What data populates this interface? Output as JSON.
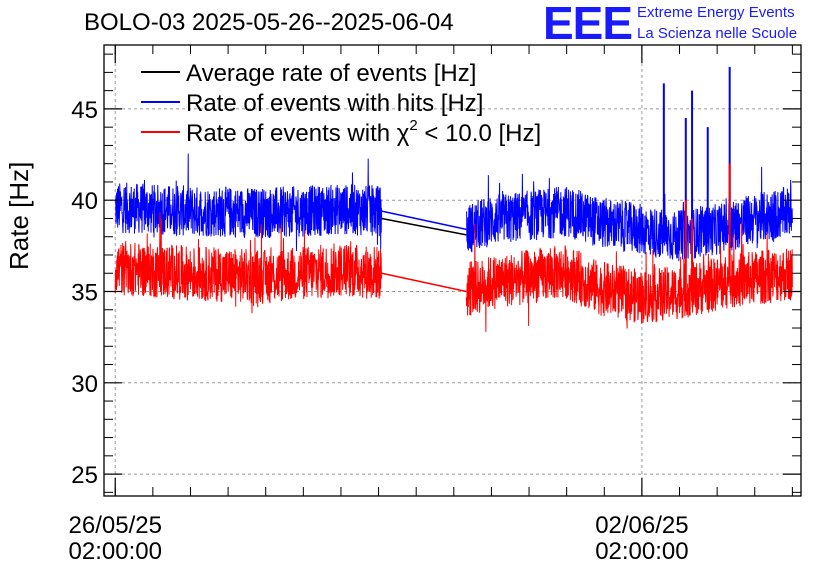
{
  "chart_data": {
    "type": "line",
    "title": "BOLO-03 2025-05-26--2025-06-04",
    "ylabel": "Rate [Hz]",
    "xlabel": "",
    "ylim": [
      23.8,
      48.5
    ],
    "yticks": [
      25,
      30,
      35,
      40,
      45
    ],
    "xrange": [
      "2025-05-25T22:25:00",
      "2025-06-04T04:45:00"
    ],
    "xticks": [
      {
        "date": "2025-05-26T02:00:00",
        "line1": "26/05/25",
        "line2": "02:00:00"
      },
      {
        "date": "2025-06-02T02:00:00",
        "line1": "02/06/25",
        "line2": "02:00:00"
      }
    ],
    "grid": true,
    "legend_position": "top-left",
    "legend": [
      {
        "label": "Average rate of events [Hz]",
        "color": "#000000"
      },
      {
        "label": "Rate of events with hits [Hz]",
        "color": "#0000ff"
      },
      {
        "label_prefix": "Rate of events with ",
        "label_symbol": "χ",
        "label_sup": "2",
        "label_suffix": " < 10.0 [Hz]",
        "color": "#ff0000"
      }
    ],
    "data_gap": [
      "2025-05-29T15:00:00",
      "2025-05-30T18:00:00"
    ],
    "series": [
      {
        "name": "Rate of events with hits [Hz]",
        "color": "#0000ff",
        "x": [
          "2025-05-26T02:00:00",
          "2025-05-27T02:00:00",
          "2025-05-28T02:00:00",
          "2025-05-29T02:00:00",
          "2025-05-29T15:00:00",
          "2025-05-30T18:00:00",
          "2025-05-31T02:00:00",
          "2025-06-01T02:00:00",
          "2025-06-01T12:00:00",
          "2025-06-02T02:00:00",
          "2025-06-02T12:00:00",
          "2025-06-03T02:00:00",
          "2025-06-03T12:00:00",
          "2025-06-04T02:00:00"
        ],
        "values": [
          39.6,
          39.4,
          39.3,
          39.5,
          39.4,
          38.4,
          38.9,
          39.4,
          38.8,
          38.4,
          38.0,
          38.4,
          38.9,
          39.4
        ],
        "spikes": [
          {
            "x": "2025-06-02T09:00:00",
            "y": 46.4
          },
          {
            "x": "2025-06-02T18:00:00",
            "y": 46.0
          },
          {
            "x": "2025-06-02T16:00:00",
            "y": 44.5
          },
          {
            "x": "2025-06-03T06:00:00",
            "y": 47.3
          },
          {
            "x": "2025-06-02T23:00:00",
            "y": 44.0
          }
        ]
      },
      {
        "name": "Average rate of events [Hz]",
        "color": "#000000",
        "x": [
          "2025-05-29T15:00:00",
          "2025-05-30T18:00:00"
        ],
        "values": [
          39.0,
          38.1
        ]
      },
      {
        "name": "Rate of events with χ2 < 10.0 [Hz]",
        "color": "#ff0000",
        "x": [
          "2025-05-26T02:00:00",
          "2025-05-27T02:00:00",
          "2025-05-28T02:00:00",
          "2025-05-29T02:00:00",
          "2025-05-29T15:00:00",
          "2025-05-30T18:00:00",
          "2025-05-31T02:00:00",
          "2025-06-01T02:00:00",
          "2025-06-01T12:00:00",
          "2025-06-02T02:00:00",
          "2025-06-02T12:00:00",
          "2025-06-03T02:00:00",
          "2025-06-03T12:00:00",
          "2025-06-04T02:00:00"
        ],
        "values": [
          36.3,
          36.0,
          35.8,
          36.2,
          36.0,
          35.0,
          35.5,
          36.1,
          35.2,
          34.7,
          34.9,
          35.4,
          35.7,
          36.0
        ],
        "spikes": [
          {
            "x": "2025-06-02T18:00:00",
            "y": 39.0
          },
          {
            "x": "2025-06-03T06:00:00",
            "y": 42.0
          },
          {
            "x": "2025-06-02T16:00:00",
            "y": 40.0
          }
        ]
      }
    ]
  },
  "logo": {
    "mark": "EEE",
    "line1": "Extreme Energy Events",
    "line2": "La Scienza nelle Scuole"
  }
}
